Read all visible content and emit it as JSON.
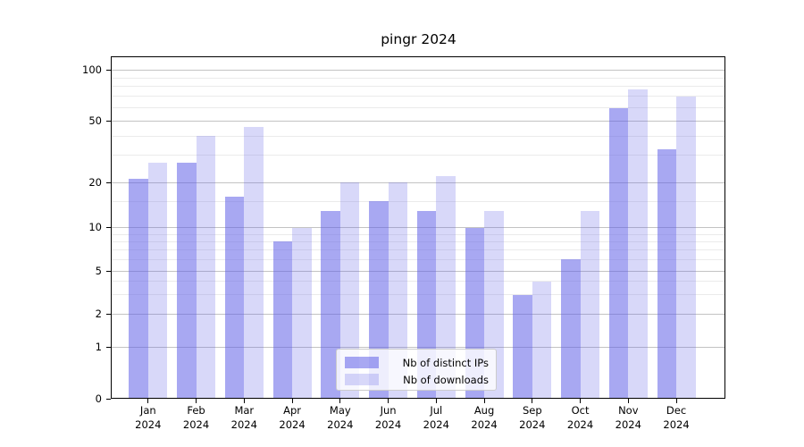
{
  "chart_data": {
    "type": "bar",
    "title": "pingr 2024",
    "months": [
      "Jan",
      "Feb",
      "Mar",
      "Apr",
      "May",
      "Jun",
      "Jul",
      "Aug",
      "Sep",
      "Oct",
      "Nov",
      "Dec"
    ],
    "year_label": "2024",
    "series": [
      {
        "name": "Nb of distinct IPs",
        "color": "rgba(90,90,230,0.53)",
        "values": [
          21,
          27,
          16,
          8,
          13,
          15,
          13,
          10,
          3,
          6,
          60,
          33
        ]
      },
      {
        "name": "Nb of downloads",
        "color": "rgba(90,90,230,0.24)",
        "values": [
          27,
          40,
          46,
          10,
          20,
          20,
          22,
          13,
          4,
          13,
          77,
          70
        ]
      }
    ],
    "y_axis": {
      "scale": "symlog-like",
      "major_ticks": [
        0,
        1,
        2,
        5,
        10,
        20,
        50,
        100
      ],
      "minor_gridlines": [
        3,
        4,
        6,
        7,
        8,
        9,
        15,
        30,
        40,
        60,
        70,
        80,
        90
      ],
      "top_value": 120
    },
    "legend": {
      "position": "lower center"
    },
    "colors": {
      "major_grid": "#c3c3c3",
      "minor_grid": "#ebebeb",
      "spine": "#000000",
      "background": "#ffffff"
    }
  }
}
